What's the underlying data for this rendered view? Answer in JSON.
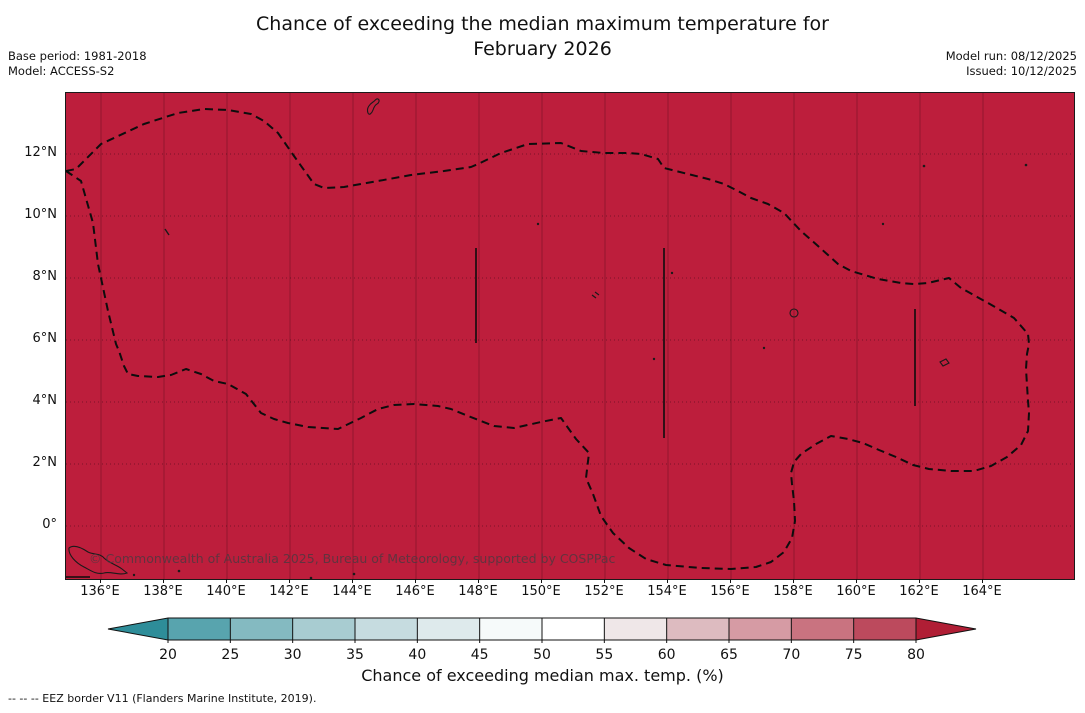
{
  "title": {
    "line1": "Chance of exceeding the median maximum temperature for",
    "line2": "February 2026"
  },
  "meta": {
    "base_period": "Base period: 1981-2018",
    "model": "Model: ACCESS-S2",
    "model_run": "Model run: 08/12/2025",
    "issued": "Issued: 10/12/2025"
  },
  "map": {
    "fill_color": "#bd1e3c",
    "watermark": "© Commonwealth of Australia 2025, Bureau of Meteorology, supported by COSPPac",
    "x_ticks": [
      "136°E",
      "138°E",
      "140°E",
      "142°E",
      "144°E",
      "146°E",
      "148°E",
      "150°E",
      "152°E",
      "154°E",
      "156°E",
      "158°E",
      "160°E",
      "162°E",
      "164°E"
    ],
    "y_ticks": [
      "12°N",
      "10°N",
      "8°N",
      "6°N",
      "4°N",
      "2°N",
      "0°"
    ]
  },
  "colorbar": {
    "label": "Chance of exceeding median max. temp. (%)",
    "ticks": [
      "20",
      "25",
      "30",
      "35",
      "40",
      "45",
      "50",
      "55",
      "60",
      "65",
      "70",
      "75",
      "80"
    ],
    "left_arrow_color": "#2e8d99",
    "right_arrow_color": "#b01e35",
    "segment_colors": [
      "#58a4ae",
      "#84bac1",
      "#a8ccd1",
      "#c6dce0",
      "#deeaec",
      "#f6fafa",
      "#ffffff",
      "#efe7e8",
      "#ddbbc0",
      "#d69ba4",
      "#c97380",
      "#bc4a5d"
    ]
  },
  "footnote": "-- -- -- EEZ border V11 (Flanders Marine Institute, 2019).",
  "chart_data": {
    "type": "heatmap",
    "title": "Chance of exceeding the median maximum temperature for February 2026",
    "field": "Chance of exceeding median max. temp. (%)",
    "value_displayed": "uniform >80% (deep red) across the entire mapped EEZ region",
    "lon_range_east": [
      135,
      167
    ],
    "lat_range_north": [
      -1.7,
      14
    ],
    "lon_tick_step_deg": 2,
    "lat_tick_step_deg": 2,
    "colorbar_ticks": [
      20,
      25,
      30,
      35,
      40,
      45,
      50,
      55,
      60,
      65,
      70,
      75,
      80
    ],
    "grid": "on",
    "legend_position": "bottom"
  }
}
